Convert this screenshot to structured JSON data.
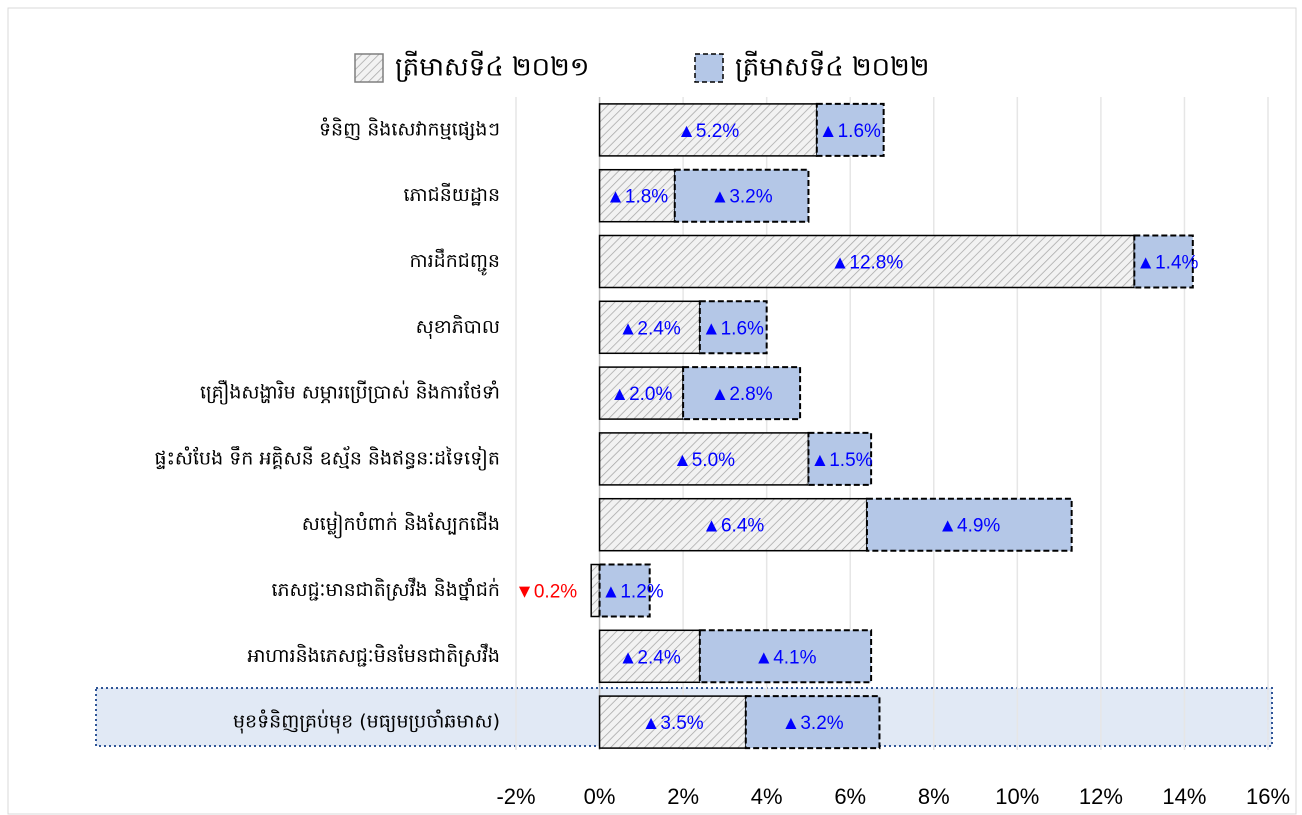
{
  "chart_data": {
    "type": "stacked_barh",
    "categories": [
      "ទំនិញ និងសេវាកម្មផ្សេងៗ",
      "ភោជនីយដ្ឋាន",
      "ការដឹកជញ្ជូន",
      "សុខាភិបាល",
      "គ្រឿងសង្ហារិម សម្ភារប្រើប្រាស់ និងការថែទាំ",
      "ផ្ទះសំបែង ទឹក អគ្គិសនី ឧស្ម័ន និងឥន្ធនៈដទៃទៀត",
      "សម្លៀកបំពាក់ និងស្បែកជើង",
      "ភេសជ្ជៈមានជាតិស្រវឹង និងថ្នាំជក់",
      "អាហារនិងភេសជ្ជៈមិនមែនជាតិស្រវឹង",
      "មុខទំនិញគ្រប់មុខ (មធ្យមប្រចាំឆមាស)"
    ],
    "series": [
      {
        "name": "ត្រីមាសទី៤ ២០២១",
        "color": "#d9d9d9",
        "values": [
          5.2,
          1.8,
          12.8,
          2.4,
          2.0,
          5.0,
          6.4,
          -0.2,
          2.4,
          3.5
        ],
        "value_labels": [
          "▲5.2%",
          "▲1.8%",
          "▲12.8%",
          "▲2.4%",
          "▲2.0%",
          "▲5.0%",
          "▲6.4%",
          "▼0.2%",
          "▲2.4%",
          "▲3.5%"
        ]
      },
      {
        "name": "ត្រីមាសទី៤ ២០២២",
        "color": "#b4c7e7",
        "values": [
          1.6,
          3.2,
          1.4,
          1.6,
          2.8,
          1.5,
          4.9,
          1.2,
          4.1,
          3.2
        ],
        "value_labels": [
          "▲1.6%",
          "▲3.2%",
          "▲1.4%",
          "▲1.6%",
          "▲2.8%",
          "▲1.5%",
          "▲4.9%",
          "▲1.2%",
          "▲4.1%",
          "▲3.2%"
        ]
      }
    ],
    "xlim": [
      -2,
      16
    ],
    "xticks": [
      {
        "value": -2,
        "label": "-2%"
      },
      {
        "value": 0,
        "label": "0%"
      },
      {
        "value": 2,
        "label": "2%"
      },
      {
        "value": 4,
        "label": "4%"
      },
      {
        "value": 6,
        "label": "6%"
      },
      {
        "value": 8,
        "label": "8%"
      },
      {
        "value": 10,
        "label": "10%"
      },
      {
        "value": 12,
        "label": "12%"
      },
      {
        "value": 14,
        "label": "14%"
      },
      {
        "value": 16,
        "label": "16%"
      }
    ],
    "grid": true,
    "legend": "top"
  }
}
